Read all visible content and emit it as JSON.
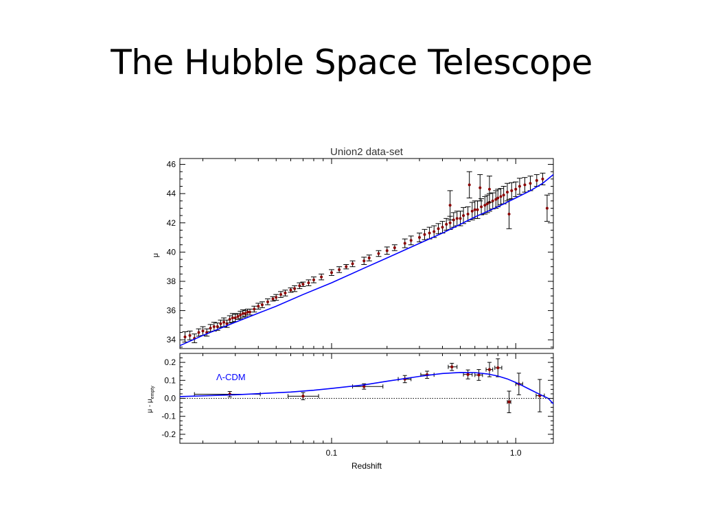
{
  "slide": {
    "title": "The Hubble Space Telescope"
  },
  "chart_data": [
    {
      "type": "scatter",
      "title": "Union2 data-set",
      "ylabel": "μ",
      "xlabel": "",
      "xscale": "log",
      "xlim": [
        0.015,
        1.6
      ],
      "ylim": [
        33.4,
        46.4
      ],
      "grid": false,
      "yticks": [
        34,
        36,
        38,
        40,
        42,
        44,
        46
      ],
      "colors": {
        "points": "#8b0000",
        "errorbars": "#000000",
        "model": "#0000ff"
      },
      "series": [
        {
          "kind": "points",
          "x": [
            0.016,
            0.017,
            0.018,
            0.019,
            0.02,
            0.021,
            0.022,
            0.023,
            0.024,
            0.025,
            0.026,
            0.027,
            0.028,
            0.029,
            0.03,
            0.031,
            0.032,
            0.033,
            0.034,
            0.035,
            0.036,
            0.038,
            0.04,
            0.042,
            0.045,
            0.048,
            0.05,
            0.053,
            0.056,
            0.06,
            0.063,
            0.067,
            0.07,
            0.075,
            0.08,
            0.088,
            0.1,
            0.11,
            0.12,
            0.13,
            0.15,
            0.16,
            0.18,
            0.2,
            0.22,
            0.25,
            0.27,
            0.3,
            0.32,
            0.34,
            0.36,
            0.38,
            0.4,
            0.42,
            0.44,
            0.46,
            0.48,
            0.5,
            0.52,
            0.55,
            0.58,
            0.6,
            0.62,
            0.65,
            0.68,
            0.7,
            0.72,
            0.75,
            0.78,
            0.8,
            0.83,
            0.86,
            0.9,
            0.95,
            1.0,
            1.05,
            1.12,
            1.2,
            1.3,
            1.4
          ],
          "y": [
            34.2,
            34.3,
            34.1,
            34.5,
            34.6,
            34.5,
            34.8,
            34.9,
            34.9,
            35.1,
            35.2,
            35.1,
            35.4,
            35.5,
            35.5,
            35.6,
            35.7,
            35.8,
            35.8,
            35.9,
            35.9,
            36.1,
            36.3,
            36.4,
            36.6,
            36.8,
            36.9,
            37.1,
            37.2,
            37.4,
            37.5,
            37.7,
            37.8,
            37.9,
            38.1,
            38.3,
            38.6,
            38.8,
            39.0,
            39.2,
            39.4,
            39.6,
            39.9,
            40.1,
            40.3,
            40.6,
            40.8,
            41.0,
            41.2,
            41.3,
            41.4,
            41.6,
            41.7,
            41.9,
            42.0,
            42.2,
            42.3,
            42.3,
            42.5,
            42.6,
            42.8,
            42.9,
            42.9,
            43.1,
            43.2,
            43.3,
            43.4,
            43.5,
            43.6,
            43.7,
            43.8,
            43.9,
            44.1,
            44.2,
            44.3,
            44.5,
            44.6,
            44.7,
            44.9,
            45.0
          ],
          "yerr": [
            0.35,
            0.3,
            0.3,
            0.25,
            0.3,
            0.25,
            0.25,
            0.3,
            0.25,
            0.25,
            0.3,
            0.25,
            0.25,
            0.3,
            0.25,
            0.2,
            0.25,
            0.25,
            0.2,
            0.2,
            0.2,
            0.2,
            0.2,
            0.2,
            0.2,
            0.15,
            0.2,
            0.2,
            0.2,
            0.15,
            0.2,
            0.2,
            0.15,
            0.2,
            0.2,
            0.2,
            0.2,
            0.2,
            0.15,
            0.2,
            0.25,
            0.2,
            0.2,
            0.25,
            0.2,
            0.3,
            0.3,
            0.3,
            0.35,
            0.4,
            0.4,
            0.35,
            0.4,
            0.4,
            0.45,
            0.5,
            0.5,
            0.5,
            0.55,
            0.5,
            0.6,
            0.6,
            0.6,
            0.55,
            0.6,
            0.6,
            0.6,
            0.55,
            0.6,
            0.6,
            0.55,
            0.6,
            0.6,
            0.55,
            0.5,
            0.55,
            0.5,
            0.5,
            0.4,
            0.4
          ]
        },
        {
          "kind": "outliers",
          "x": [
            0.44,
            0.56,
            0.64,
            0.72,
            0.92,
            1.48
          ],
          "y": [
            43.2,
            44.6,
            44.4,
            44.3,
            42.6,
            43.0
          ],
          "yerr": [
            1.0,
            0.9,
            0.9,
            0.9,
            1.0,
            0.9
          ]
        },
        {
          "kind": "curve",
          "x": [
            0.015,
            0.02,
            0.03,
            0.05,
            0.07,
            0.1,
            0.15,
            0.2,
            0.3,
            0.4,
            0.5,
            0.6,
            0.8,
            1.0,
            1.2,
            1.4,
            1.6
          ],
          "y": [
            33.6,
            34.3,
            35.2,
            36.3,
            37.1,
            37.9,
            38.9,
            39.6,
            40.6,
            41.3,
            41.9,
            42.4,
            43.1,
            43.7,
            44.2,
            44.7,
            45.3
          ]
        }
      ]
    },
    {
      "type": "scatter",
      "title": "",
      "xlabel": "Redshift",
      "ylabel": "μ - μ",
      "ylabel_sub": "empty",
      "xscale": "log",
      "xlim": [
        0.015,
        1.6
      ],
      "ylim": [
        -0.25,
        0.25
      ],
      "grid": false,
      "yticks": [
        0.2,
        0.1,
        0.0,
        -0.1,
        -0.2
      ],
      "ytick_labels": [
        "0.2",
        "0.1",
        "0.0",
        "-0.1",
        "-0.2"
      ],
      "xticks": [
        0.1,
        1.0
      ],
      "xtick_labels": [
        "0.1",
        "1.0"
      ],
      "annotation": "Λ-CDM",
      "colors": {
        "points": "#8b0000",
        "errorbars": "#000000",
        "model": "#0000ff",
        "reference": "#000000"
      },
      "series": [
        {
          "kind": "binned",
          "x": [
            0.028,
            0.07,
            0.15,
            0.25,
            0.33,
            0.45,
            0.55,
            0.63,
            0.72,
            0.8,
            0.92,
            1.04,
            1.35
          ],
          "y": [
            0.023,
            0.012,
            0.066,
            0.107,
            0.131,
            0.175,
            0.133,
            0.13,
            0.16,
            0.17,
            -0.02,
            0.08,
            0.015
          ],
          "xerr_lo": [
            0.01,
            0.012,
            0.02,
            0.02,
            0.025,
            0.02,
            0.03,
            0.03,
            0.03,
            0.03,
            0.02,
            0.04,
            0.06
          ],
          "xerr_hi": [
            0.013,
            0.015,
            0.04,
            0.02,
            0.03,
            0.03,
            0.03,
            0.03,
            0.03,
            0.04,
            0.02,
            0.05,
            0.08
          ],
          "yerr": [
            0.015,
            0.02,
            0.015,
            0.02,
            0.02,
            0.02,
            0.025,
            0.03,
            0.04,
            0.05,
            0.06,
            0.06,
            0.09
          ]
        },
        {
          "kind": "curve",
          "x": [
            0.015,
            0.02,
            0.03,
            0.04,
            0.06,
            0.08,
            0.1,
            0.15,
            0.2,
            0.3,
            0.4,
            0.5,
            0.6,
            0.7,
            0.8,
            0.9,
            1.0,
            1.1,
            1.2,
            1.35,
            1.5,
            1.6
          ],
          "y": [
            0.01,
            0.014,
            0.02,
            0.026,
            0.035,
            0.045,
            0.055,
            0.075,
            0.095,
            0.122,
            0.138,
            0.144,
            0.143,
            0.136,
            0.124,
            0.108,
            0.088,
            0.068,
            0.048,
            0.022,
            0.0,
            -0.03
          ]
        },
        {
          "kind": "reference",
          "y": 0.0
        }
      ]
    }
  ]
}
